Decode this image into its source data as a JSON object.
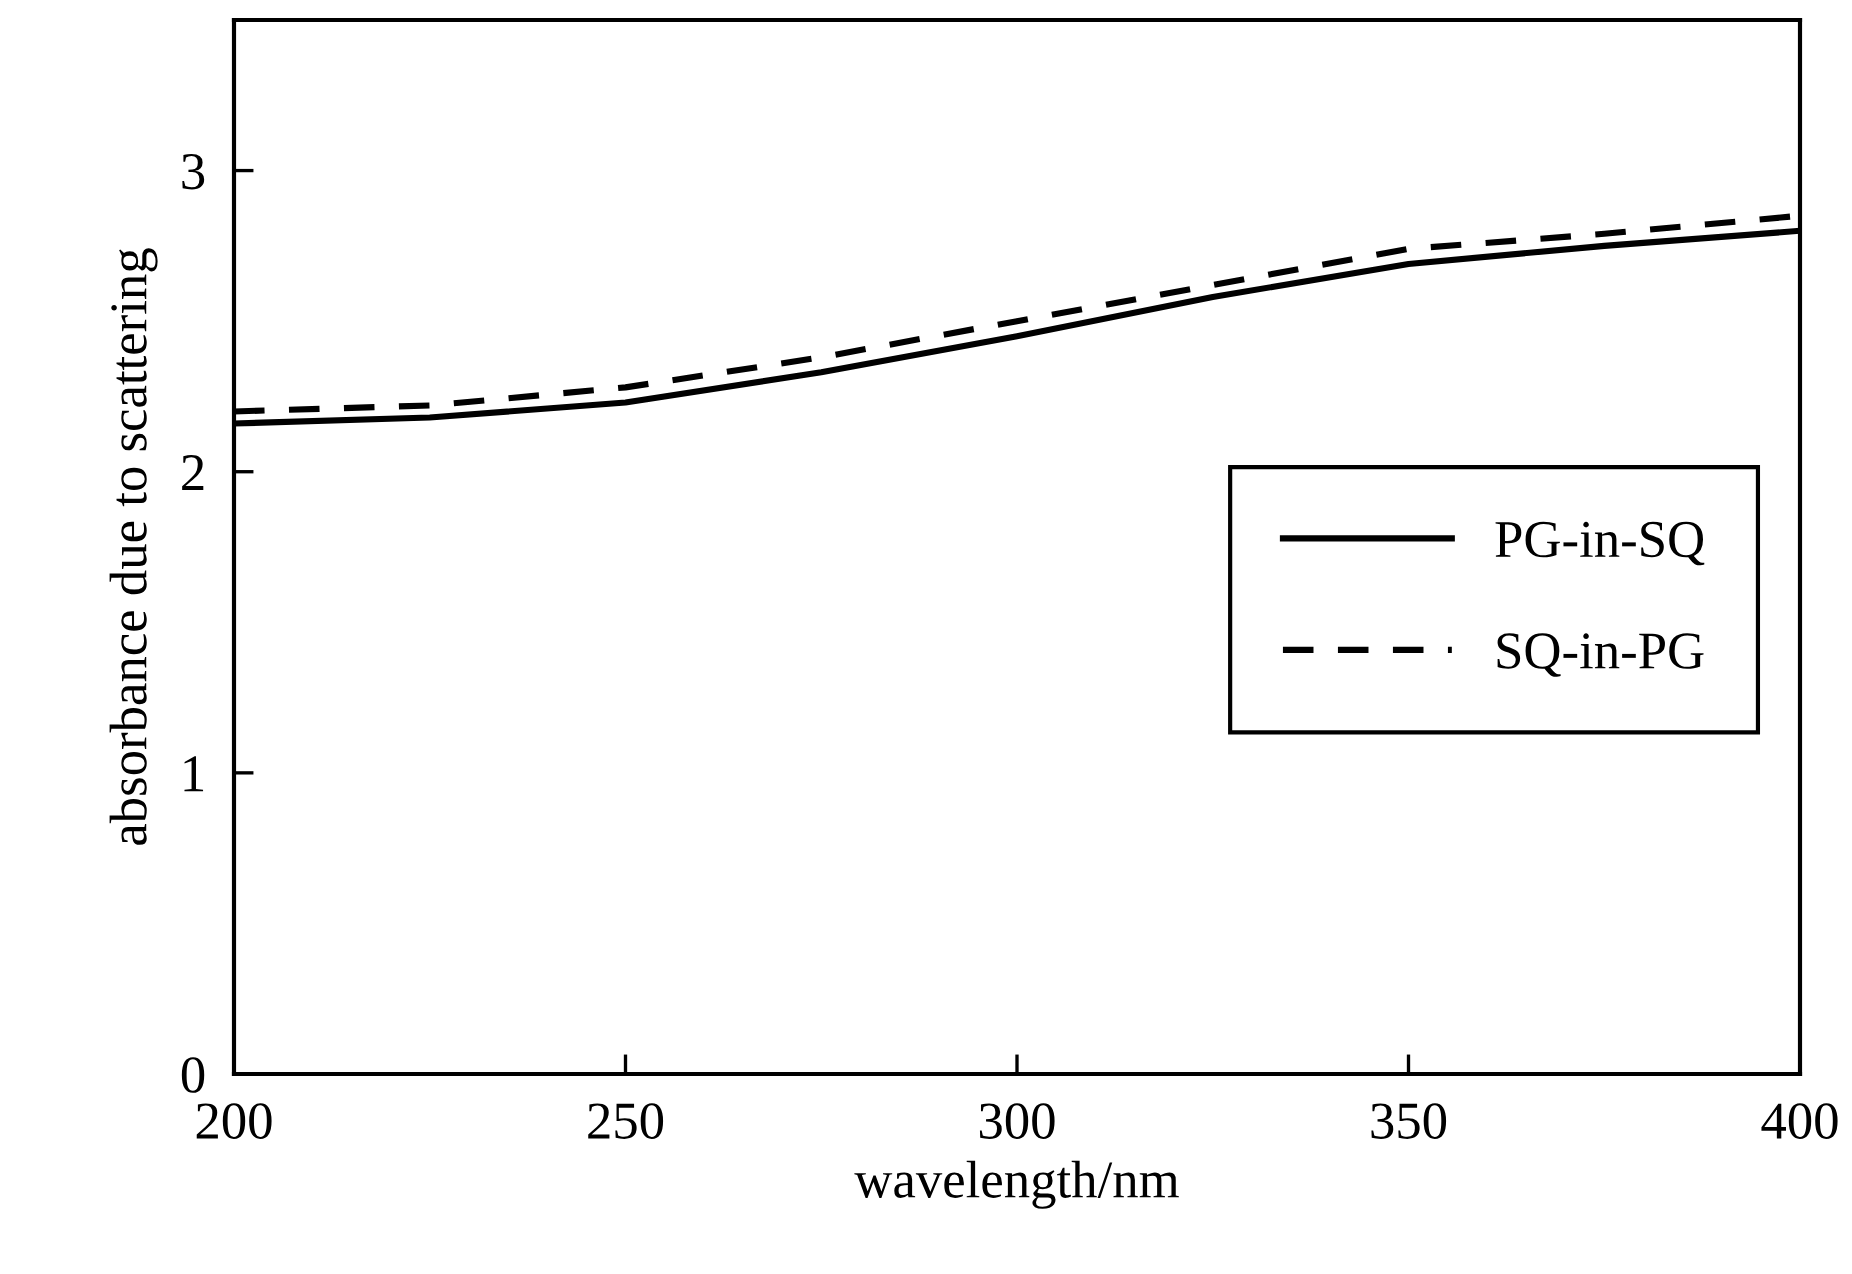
{
  "chart_data": {
    "type": "line",
    "xlabel": "wavelength/nm",
    "ylabel": "absorbance due to scattering",
    "x": [
      200,
      225,
      250,
      275,
      300,
      325,
      350,
      375,
      400
    ],
    "series": [
      {
        "name": "PG-in-SQ",
        "color": "#000000",
        "line_style": "solid",
        "values": [
          2.16,
          2.18,
          2.23,
          2.33,
          2.45,
          2.58,
          2.69,
          2.75,
          2.8
        ]
      },
      {
        "name": "SQ-in-PG",
        "color": "#000000",
        "line_style": "dashed",
        "values": [
          2.2,
          2.22,
          2.28,
          2.38,
          2.5,
          2.62,
          2.74,
          2.79,
          2.85
        ]
      }
    ],
    "xlim": [
      200,
      400
    ],
    "xticks": [
      200,
      250,
      300,
      350,
      400
    ],
    "ylim": [
      0,
      3.5
    ],
    "yticks": [
      0,
      1,
      2,
      3,
      {
        "value": 3.5,
        "label": null
      }
    ],
    "grid": false,
    "legend": "right",
    "marker": "none"
  }
}
